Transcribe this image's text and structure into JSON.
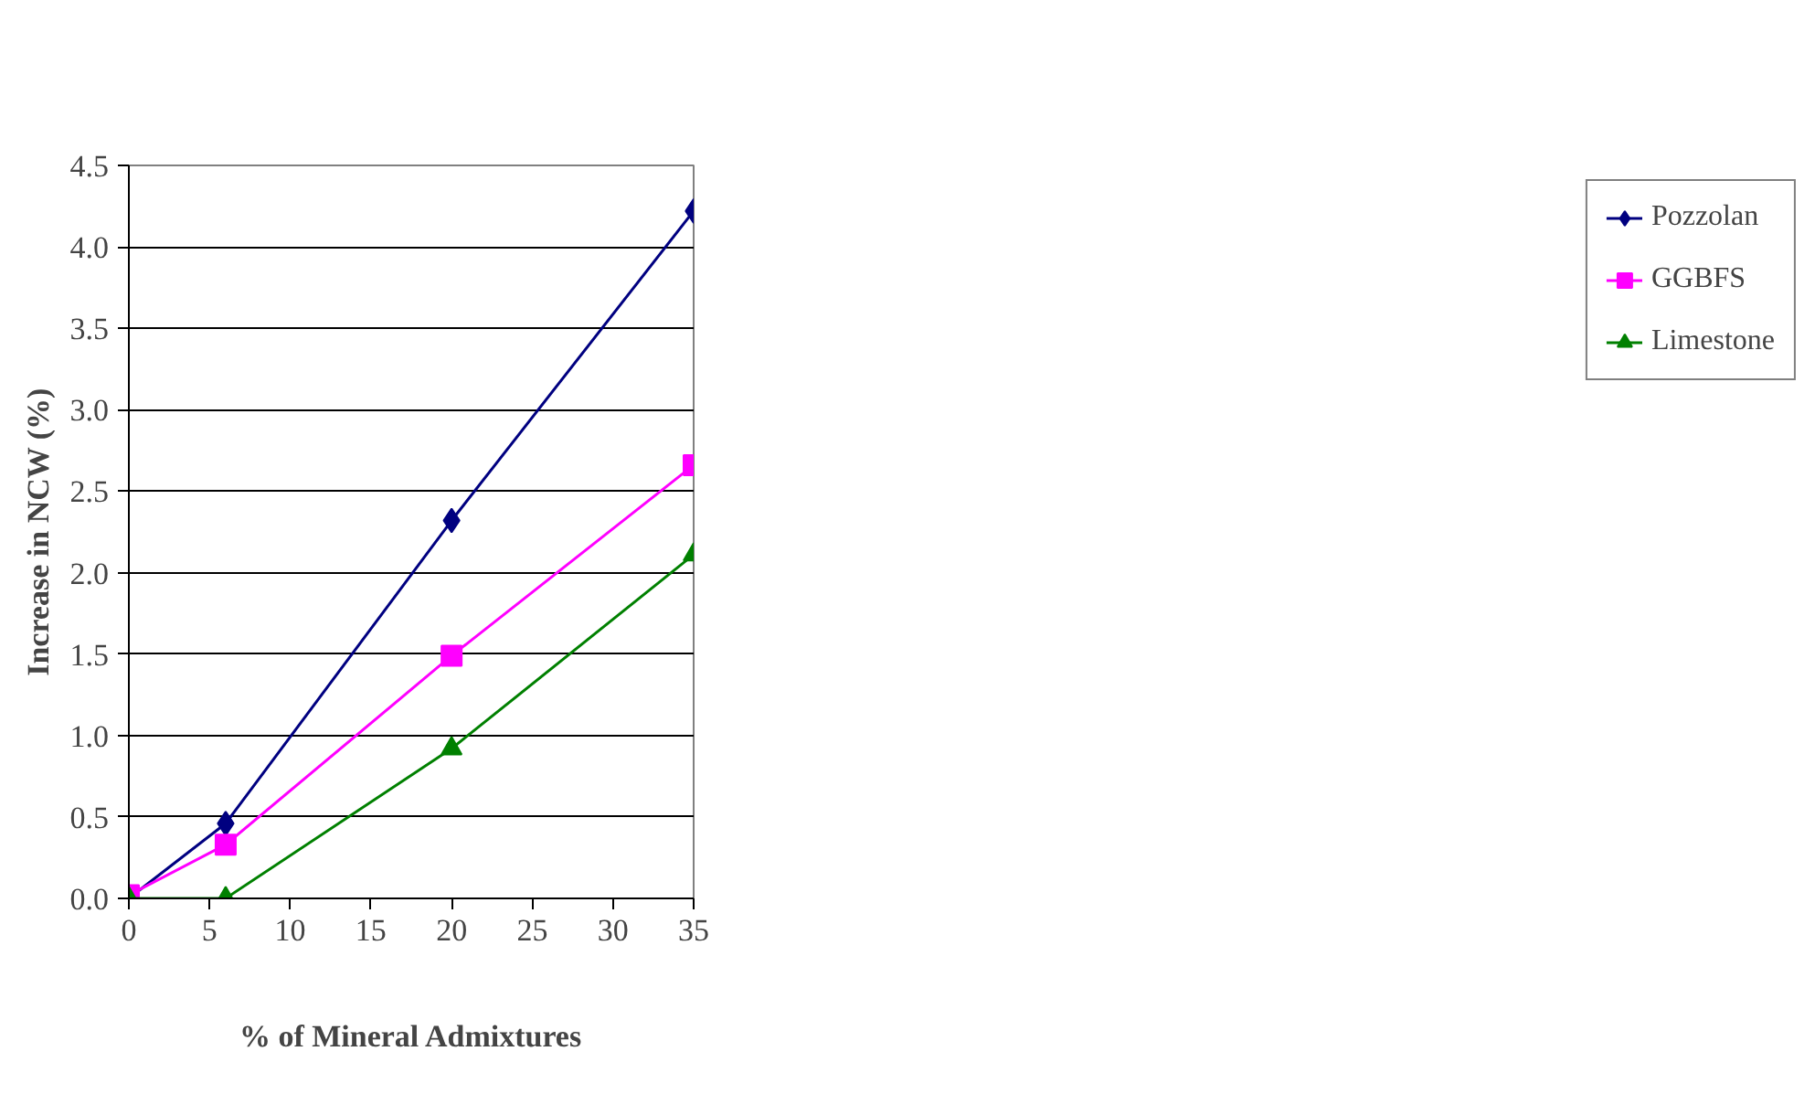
{
  "chart_data": {
    "type": "line",
    "xlabel": "% of Mineral Admixtures",
    "ylabel": "Increase in NCW (%)",
    "xlim": [
      0,
      35
    ],
    "xticks": [
      0,
      5,
      10,
      15,
      20,
      25,
      30,
      35
    ],
    "ylim": [
      0,
      4.5
    ],
    "yticks": [
      {
        "value": 0,
        "label": "0.0"
      },
      {
        "value": 0.5,
        "label": "0.5"
      },
      {
        "value": 1,
        "label": "1.0"
      },
      {
        "value": 1.5,
        "label": "1.5"
      },
      {
        "value": 2,
        "label": "2.0"
      },
      {
        "value": 2.5,
        "label": "2.5"
      },
      {
        "value": 3,
        "label": "3.0"
      },
      {
        "value": 3.5,
        "label": "3.5"
      },
      {
        "value": 4,
        "label": "4.0"
      },
      {
        "value": 4.5,
        "label": "4.5"
      }
    ],
    "x": [
      0,
      6,
      20,
      35
    ],
    "grid": "y",
    "legend": "right",
    "series": [
      {
        "name": "Pozzolan",
        "color": "#000080",
        "marker": "diamond",
        "values": [
          0,
          0.46,
          2.32,
          4.22
        ]
      },
      {
        "name": "GGBFS",
        "color": "#ff00ff",
        "marker": "square",
        "values": [
          0.02,
          0.33,
          1.49,
          2.66
        ]
      },
      {
        "name": "Limestone",
        "color": "#008000",
        "marker": "triangle",
        "values": [
          0,
          0,
          0.92,
          2.11
        ]
      }
    ]
  }
}
